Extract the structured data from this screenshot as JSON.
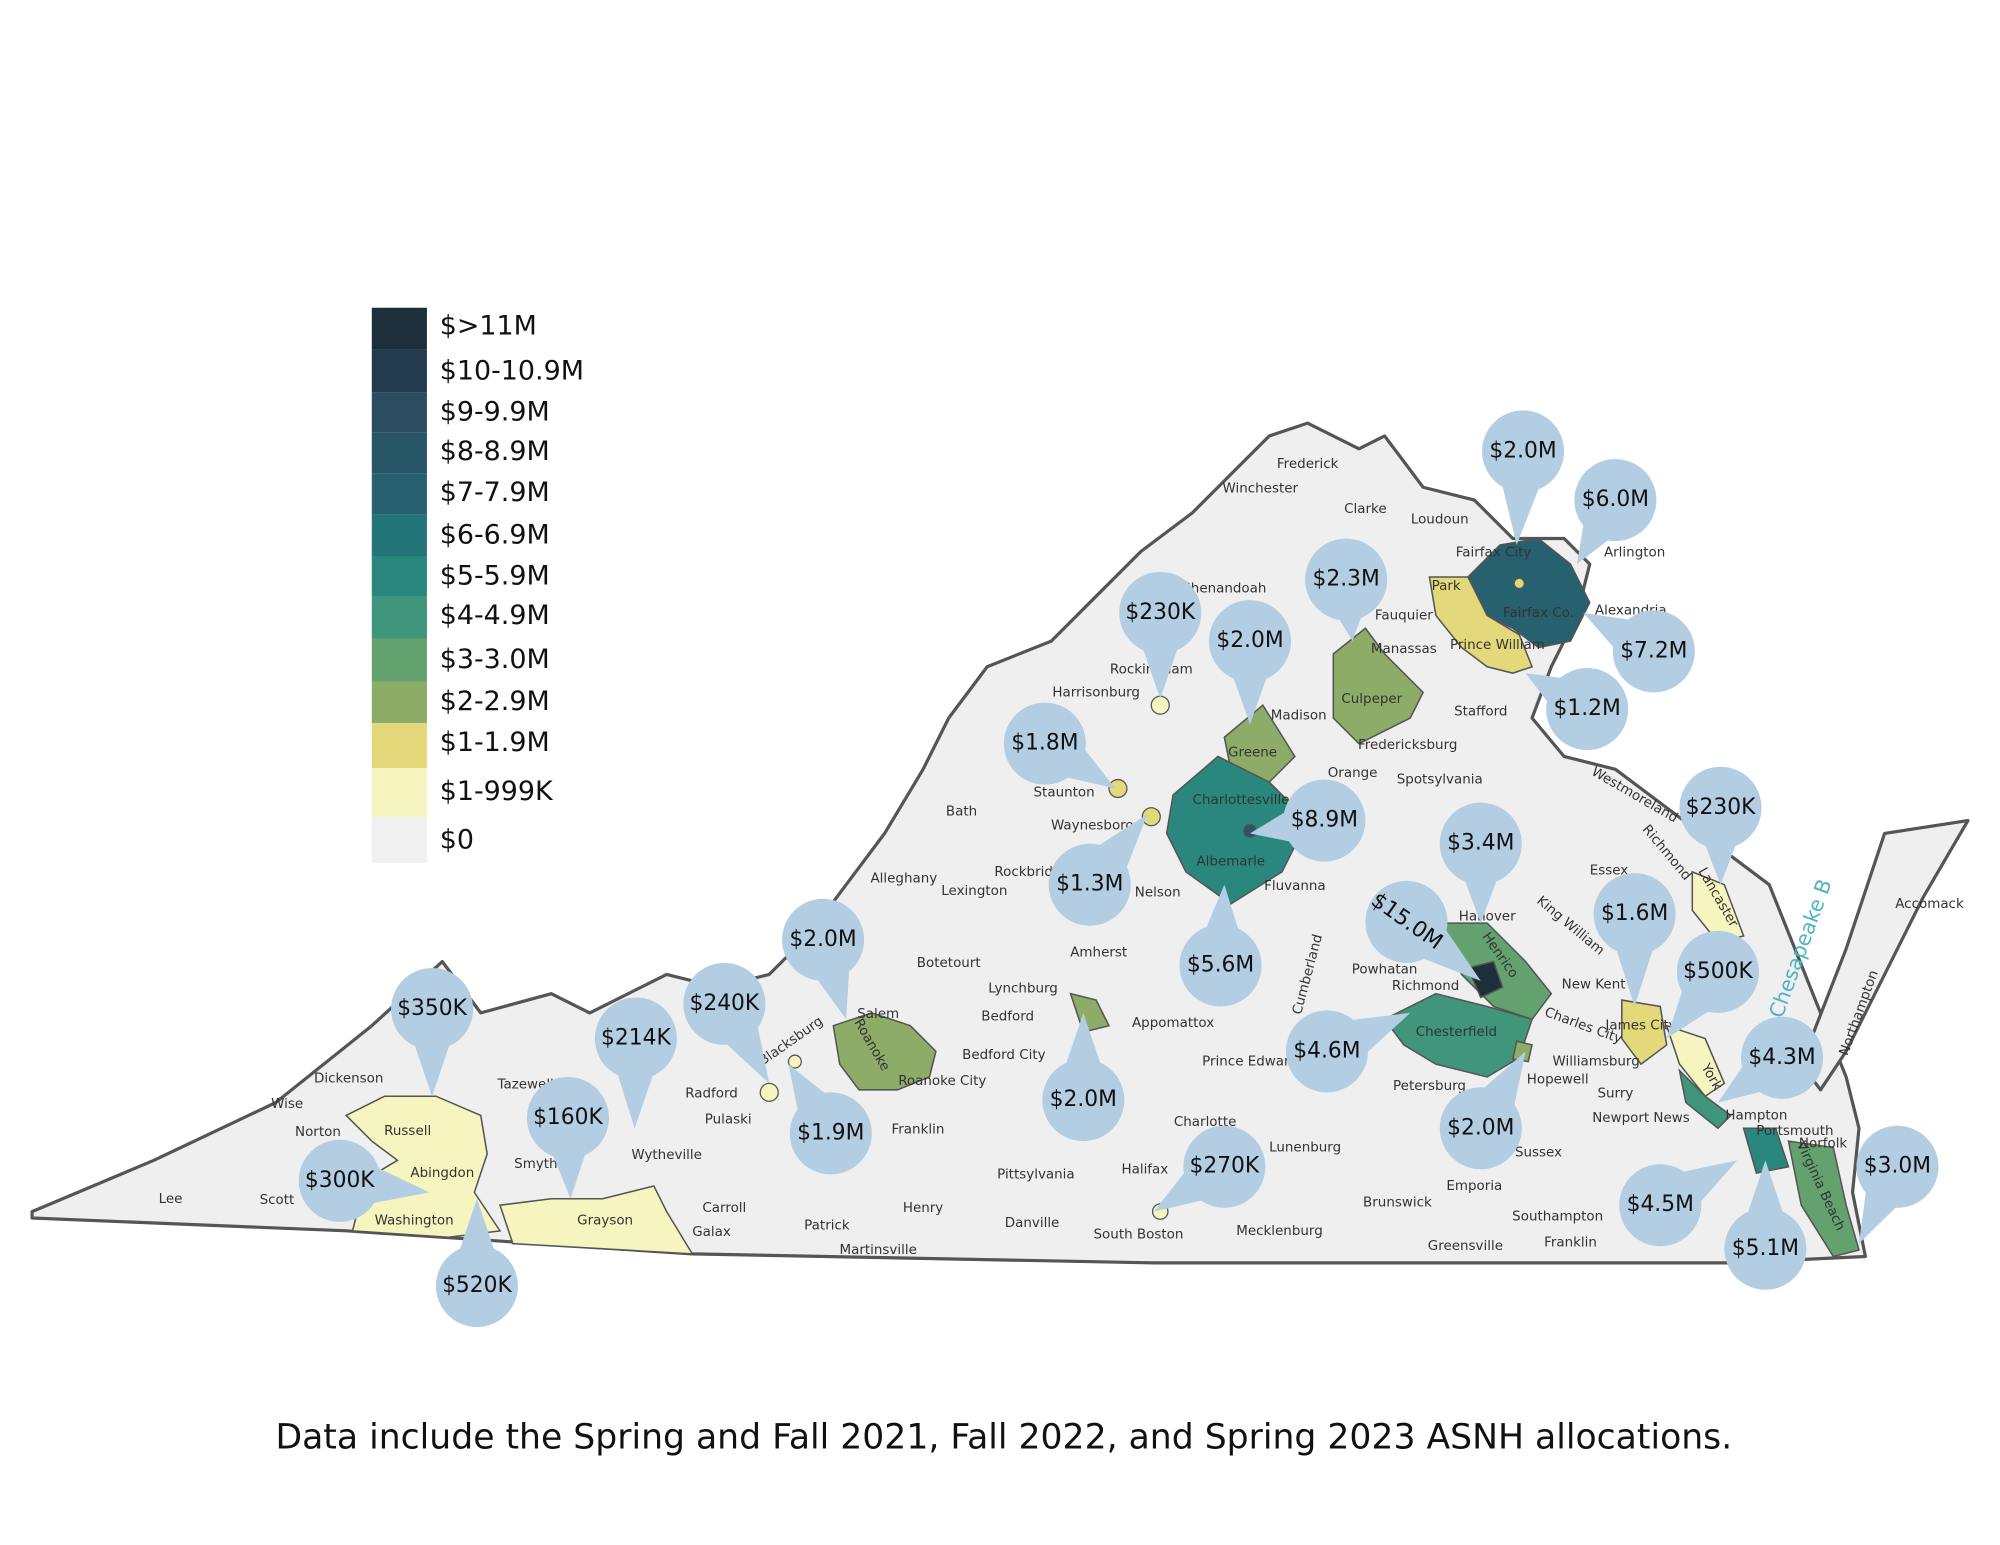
{
  "legend": {
    "items": [
      {
        "label": "$>11M",
        "color": "#1c2f3a"
      },
      {
        "label": "$10-10.9M",
        "color": "#233c4d"
      },
      {
        "label": "$9-9.9M",
        "color": "#2c4d60"
      },
      {
        "label": "$8-8.9M",
        "color": "#265565"
      },
      {
        "label": "$7-7.9M",
        "color": "#27606e"
      },
      {
        "label": "$6-6.9M",
        "color": "#217478"
      },
      {
        "label": "$5-5.9M",
        "color": "#2a877d"
      },
      {
        "label": "$4-4.9M",
        "color": "#3f967a"
      },
      {
        "label": "$3-3.0M",
        "color": "#63a26f"
      },
      {
        "label": "$2-2.9M",
        "color": "#8dac68"
      },
      {
        "label": "$1-1.9M",
        "color": "#e3d97a"
      },
      {
        "label": "$1-999K",
        "color": "#f6f5bf"
      },
      {
        "label": "$0",
        "color": "#f0f0f0"
      }
    ]
  },
  "pins": [
    "$2.0M",
    "$6.0M",
    "$7.2M",
    "$1.2M",
    "$2.3M",
    "$230K",
    "$2.0M",
    "$1.8M",
    "$1.3M",
    "$8.9M",
    "$5.6M",
    "$3.4M",
    "$15.0M",
    "$4.6M",
    "$2.0M",
    "$1.6M",
    "$230K",
    "$500K",
    "$4.3M",
    "$4.5M",
    "$5.1M",
    "$3.0M",
    "$2.0M",
    "$240K",
    "$1.9M",
    "$2.0M",
    "$270K",
    "$214K",
    "$160K",
    "$350K",
    "$300K",
    "$520K"
  ],
  "places": [
    "Frederick",
    "Winchester",
    "Clarke",
    "Loudoun",
    "Arlington",
    "Alexandria",
    "Fairfax City",
    "Fairfax Co.",
    "Park",
    "Prince William",
    "Manassas",
    "Fauquier",
    "Shenandoah",
    "Culpeper",
    "Madison",
    "Stafford",
    "Fredericksburg",
    "Greene",
    "Orange",
    "Spotsylvania",
    "Staunton",
    "Waynesboro",
    "Harrisonburg",
    "Rockingham",
    "Charlottesville",
    "Albemarle",
    "Fluvanna",
    "Bath",
    "Alleghany",
    "Rockbridge",
    "Lexington",
    "Nelson",
    "Amherst",
    "Botetourt",
    "Lynchburg",
    "Bedford",
    "Bedford City",
    "Appomattox",
    "Prince Edward",
    "Powhatan",
    "Richmond",
    "Chesterfield",
    "Hanover",
    "Henrico",
    "Hopewell",
    "Petersburg",
    "Essex",
    "New Kent",
    "Charles City",
    "Surry",
    "Sussex",
    "Southampton",
    "Franklin",
    "Greensville",
    "Emporia",
    "Brunswick",
    "Mecklenburg",
    "Lunenburg",
    "Charlotte",
    "Halifax",
    "South Boston",
    "Pittsylvania",
    "Danville",
    "Henry",
    "Martinsville",
    "Patrick",
    "Franklin",
    "Roanoke City",
    "Salem",
    "Roanoke",
    "Carroll",
    "Galax",
    "Radford",
    "Pulaski",
    "Blacksburg",
    "Wytheville",
    "Grayson",
    "Smyth",
    "Tazewell",
    "Russell",
    "Abingdon",
    "Washington",
    "Dickenson",
    "Wise",
    "Norton",
    "Lee",
    "Scott",
    "James City",
    "York",
    "Lancaster",
    "Hampton",
    "Portsmouth",
    "Norfolk",
    "Virginia Beach",
    "Newport News",
    "Williamsburg",
    "Accomack",
    "Northampton",
    "Chesapeake B",
    "Westmoreland",
    "Richmond",
    "King William",
    "Cumberland"
  ],
  "caption": "Data include the Spring and Fall 2021, Fall 2022, and Spring 2023 ASNH allocations."
}
